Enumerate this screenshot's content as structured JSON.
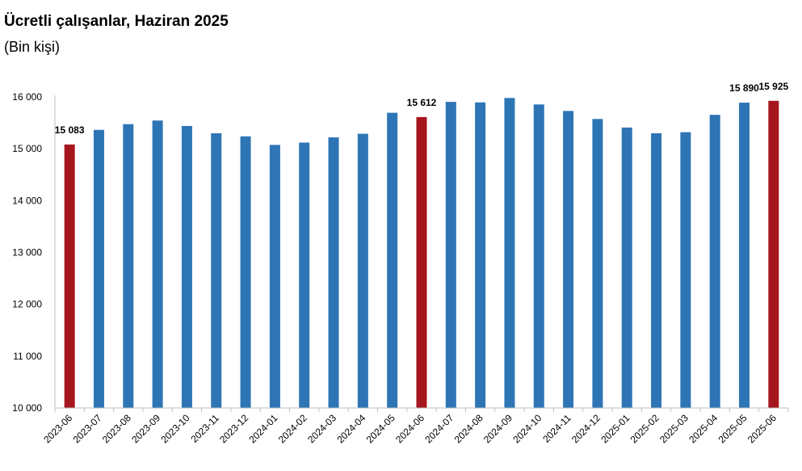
{
  "chart_data": {
    "type": "bar",
    "title": "Ücretli çalışanlar, Haziran 2025",
    "subtitle": "(Bin kişi)",
    "xlabel": "",
    "ylabel": "",
    "ylim": [
      10000,
      16000
    ],
    "yticks": [
      10000,
      11000,
      12000,
      13000,
      14000,
      15000,
      16000
    ],
    "ytick_labels": [
      "10 000",
      "11 000",
      "12 000",
      "13 000",
      "14 000",
      "15 000",
      "16 000"
    ],
    "grid": false,
    "legend": "none",
    "categories": [
      "2023-06",
      "2023-07",
      "2023-08",
      "2023-09",
      "2023-10",
      "2023-11",
      "2023-12",
      "2024-01",
      "2024-02",
      "2024-03",
      "2024-04",
      "2024-05",
      "2024-06",
      "2024-07",
      "2024-08",
      "2024-09",
      "2024-10",
      "2024-11",
      "2024-12",
      "2025-01",
      "2025-02",
      "2025-03",
      "2025-04",
      "2025-05",
      "2025-06"
    ],
    "values": [
      15083,
      15365,
      15475,
      15545,
      15440,
      15300,
      15240,
      15075,
      15120,
      15220,
      15290,
      15695,
      15612,
      15905,
      15895,
      15980,
      15855,
      15730,
      15575,
      15410,
      15300,
      15320,
      15655,
      15890,
      15925
    ],
    "highlight": [
      true,
      false,
      false,
      false,
      false,
      false,
      false,
      false,
      false,
      false,
      false,
      false,
      true,
      false,
      false,
      false,
      false,
      false,
      false,
      false,
      false,
      false,
      false,
      false,
      true
    ],
    "data_labels": [
      "15 083",
      "",
      "",
      "",
      "",
      "",
      "",
      "",
      "",
      "",
      "",
      "",
      "15 612",
      "",
      "",
      "",
      "",
      "",
      "",
      "",
      "",
      "",
      "",
      "15 890",
      "15 925"
    ],
    "colors": {
      "bar": "#2e75b6",
      "highlight": "#a5161d",
      "axis": "#bfbfbf"
    }
  }
}
